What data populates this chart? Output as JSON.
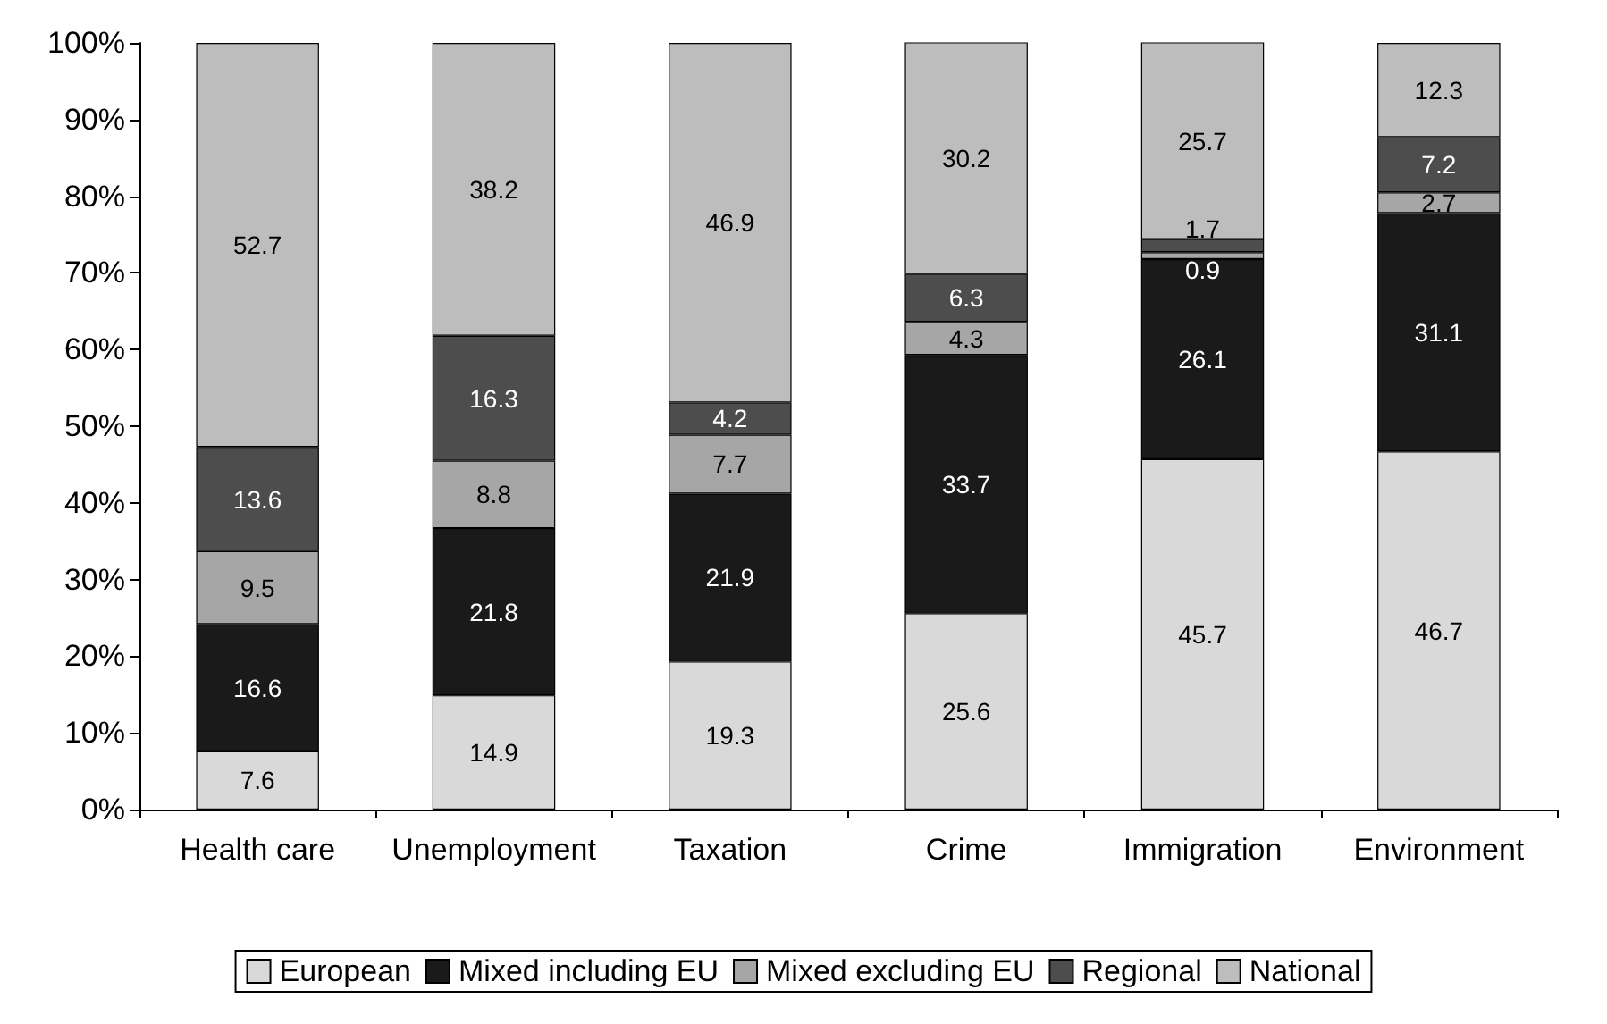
{
  "chart_data": {
    "type": "bar",
    "stacked": true,
    "data_labels": true,
    "grid": false,
    "legend": "bottom",
    "categories": [
      "Health care",
      "Unemployment",
      "Taxation",
      "Crime",
      "Immigration",
      "Environment"
    ],
    "series": [
      {
        "name": "European",
        "color": "#d9d9d9",
        "values": [
          7.6,
          14.9,
          19.3,
          25.6,
          45.7,
          46.7
        ]
      },
      {
        "name": "Mixed including EU",
        "color": "#1a1a1a",
        "values": [
          16.6,
          21.8,
          21.9,
          33.7,
          26.1,
          31.1
        ]
      },
      {
        "name": "Mixed excluding EU",
        "color": "#a6a6a6",
        "values": [
          9.5,
          8.8,
          7.7,
          4.3,
          0.9,
          2.7
        ]
      },
      {
        "name": "Regional",
        "color": "#4d4d4d",
        "values": [
          13.6,
          16.3,
          4.2,
          6.3,
          1.7,
          7.2
        ]
      },
      {
        "name": "National",
        "color": "#bdbdbd",
        "values": [
          52.7,
          38.2,
          46.9,
          30.2,
          25.7,
          12.3
        ]
      }
    ],
    "ylim": [
      0,
      100
    ],
    "yticks": [
      {
        "value": 0,
        "label": "0%"
      },
      {
        "value": 10,
        "label": "10%"
      },
      {
        "value": 20,
        "label": "20%"
      },
      {
        "value": 30,
        "label": "30%"
      },
      {
        "value": 40,
        "label": "40%"
      },
      {
        "value": 50,
        "label": "50%"
      },
      {
        "value": 60,
        "label": "60%"
      },
      {
        "value": 70,
        "label": "70%"
      },
      {
        "value": 80,
        "label": "80%"
      },
      {
        "value": 90,
        "label": "90%"
      },
      {
        "value": 100,
        "label": "100%"
      }
    ]
  }
}
